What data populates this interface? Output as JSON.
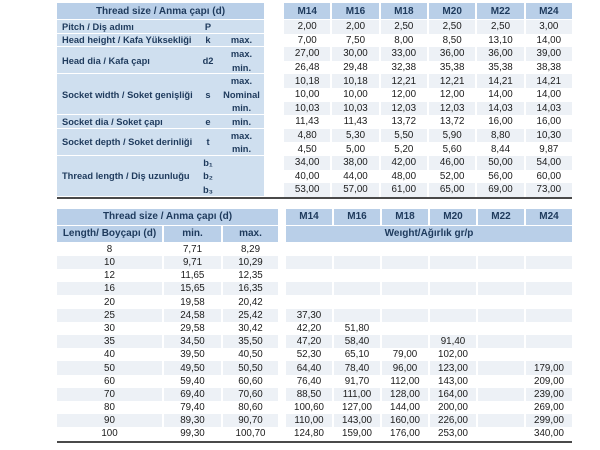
{
  "colors": {
    "header_blue": "#b9cfe8",
    "label_blue": "#cfdfef",
    "stripe": "#edf1f6",
    "rule": "#4a4a4a",
    "heading_text": "#1e3a5c",
    "number_text": "#1c1c1c"
  },
  "table1": {
    "header_label": "Thread size / Anma çapı (d)",
    "sizes": [
      "M14",
      "M16",
      "M18",
      "M20",
      "M22",
      "M24"
    ],
    "groups": [
      {
        "label": "Pitch / Diş adımı",
        "symbol": "P",
        "rows": [
          {
            "sub": "",
            "values": [
              "2,00",
              "2,00",
              "2,50",
              "2,50",
              "2,50",
              "3,00"
            ]
          }
        ]
      },
      {
        "label": "Head height / Kafa Yüksekliği",
        "symbol": "k",
        "rows": [
          {
            "sub": "max.",
            "values": [
              "7,00",
              "7,50",
              "8,00",
              "8,50",
              "13,10",
              "14,00"
            ]
          }
        ]
      },
      {
        "label": "Head dia / Kafa çapı",
        "symbol": "d2",
        "rows": [
          {
            "sub": "max.",
            "values": [
              "27,00",
              "30,00",
              "33,00",
              "36,00",
              "36,00",
              "39,00"
            ]
          },
          {
            "sub": "min.",
            "values": [
              "26,48",
              "29,48",
              "32,38",
              "35,38",
              "35,38",
              "38,38"
            ]
          }
        ]
      },
      {
        "label": "Socket width / Soket genişliği",
        "symbol": "s",
        "rows": [
          {
            "sub": "max.",
            "values": [
              "10,18",
              "10,18",
              "12,21",
              "12,21",
              "14,21",
              "14,21"
            ]
          },
          {
            "sub": "Nominal",
            "values": [
              "10,00",
              "10,00",
              "12,00",
              "12,00",
              "14,00",
              "14,00"
            ]
          },
          {
            "sub": "min.",
            "values": [
              "10,03",
              "10,03",
              "12,03",
              "12,03",
              "14,03",
              "14,03"
            ]
          }
        ]
      },
      {
        "label": "Socket dia / Soket çapı",
        "symbol": "e",
        "rows": [
          {
            "sub": "min.",
            "values": [
              "11,43",
              "11,43",
              "13,72",
              "13,72",
              "16,00",
              "16,00"
            ]
          }
        ]
      },
      {
        "label": "Socket depth / Soket derinliği",
        "symbol": "t",
        "rows": [
          {
            "sub": "max.",
            "values": [
              "4,80",
              "5,30",
              "5,50",
              "5,90",
              "8,80",
              "10,30"
            ]
          },
          {
            "sub": "min.",
            "values": [
              "4,50",
              "5,00",
              "5,20",
              "5,60",
              "8,44",
              "9,87"
            ]
          }
        ]
      },
      {
        "label": "Thread length / Diş uzunluğu",
        "symbol": "",
        "rows": [
          {
            "sym": "b₁",
            "sub": "",
            "values": [
              "34,00",
              "38,00",
              "42,00",
              "46,00",
              "50,00",
              "54,00"
            ]
          },
          {
            "sym": "b₂",
            "sub": "",
            "values": [
              "40,00",
              "44,00",
              "48,00",
              "52,00",
              "56,00",
              "60,00"
            ]
          },
          {
            "sym": "b₃",
            "sub": "",
            "values": [
              "53,00",
              "57,00",
              "61,00",
              "65,00",
              "69,00",
              "73,00"
            ]
          }
        ]
      }
    ]
  },
  "table2": {
    "header_label": "Thread size / Anma çapı (d)",
    "sizes": [
      "M14",
      "M16",
      "M18",
      "M20",
      "M22",
      "M24"
    ],
    "length_header": "Length/ Boyçapı (d)",
    "min_header": "min.",
    "max_header": "max.",
    "weight_header": "Weıght/Ağırlık gr/p",
    "rows": [
      {
        "len": "8",
        "min": "7,71",
        "max": "8,29",
        "w": [
          "",
          "",
          "",
          "",
          "",
          ""
        ]
      },
      {
        "len": "10",
        "min": "9,71",
        "max": "10,29",
        "w": [
          "",
          "",
          "",
          "",
          "",
          ""
        ]
      },
      {
        "len": "12",
        "min": "11,65",
        "max": "12,35",
        "w": [
          "",
          "",
          "",
          "",
          "",
          ""
        ]
      },
      {
        "len": "16",
        "min": "15,65",
        "max": "16,35",
        "w": [
          "",
          "",
          "",
          "",
          "",
          ""
        ]
      },
      {
        "len": "20",
        "min": "19,58",
        "max": "20,42",
        "w": [
          "",
          "",
          "",
          "",
          "",
          ""
        ]
      },
      {
        "len": "25",
        "min": "24,58",
        "max": "25,42",
        "w": [
          "37,30",
          "",
          "",
          "",
          "",
          ""
        ]
      },
      {
        "len": "30",
        "min": "29,58",
        "max": "30,42",
        "w": [
          "42,20",
          "51,80",
          "",
          "",
          "",
          ""
        ]
      },
      {
        "len": "35",
        "min": "34,50",
        "max": "35,50",
        "w": [
          "47,20",
          "58,40",
          "",
          "91,40",
          "",
          ""
        ]
      },
      {
        "len": "40",
        "min": "39,50",
        "max": "40,50",
        "w": [
          "52,30",
          "65,10",
          "79,00",
          "102,00",
          "",
          ""
        ]
      },
      {
        "len": "50",
        "min": "49,50",
        "max": "50,50",
        "w": [
          "64,40",
          "78,40",
          "96,00",
          "123,00",
          "",
          "179,00"
        ]
      },
      {
        "len": "60",
        "min": "59,40",
        "max": "60,60",
        "w": [
          "76,40",
          "91,70",
          "112,00",
          "143,00",
          "",
          "209,00"
        ]
      },
      {
        "len": "70",
        "min": "69,40",
        "max": "70,60",
        "w": [
          "88,50",
          "111,00",
          "128,00",
          "164,00",
          "",
          "239,00"
        ]
      },
      {
        "len": "80",
        "min": "79,40",
        "max": "80,60",
        "w": [
          "100,60",
          "127,00",
          "144,00",
          "200,00",
          "",
          "269,00"
        ]
      },
      {
        "len": "90",
        "min": "89,30",
        "max": "90,70",
        "w": [
          "110,00",
          "143,00",
          "160,00",
          "226,00",
          "",
          "299,00"
        ]
      },
      {
        "len": "100",
        "min": "99,30",
        "max": "100,70",
        "w": [
          "124,80",
          "159,00",
          "176,00",
          "253,00",
          "",
          "340,00"
        ]
      }
    ]
  }
}
